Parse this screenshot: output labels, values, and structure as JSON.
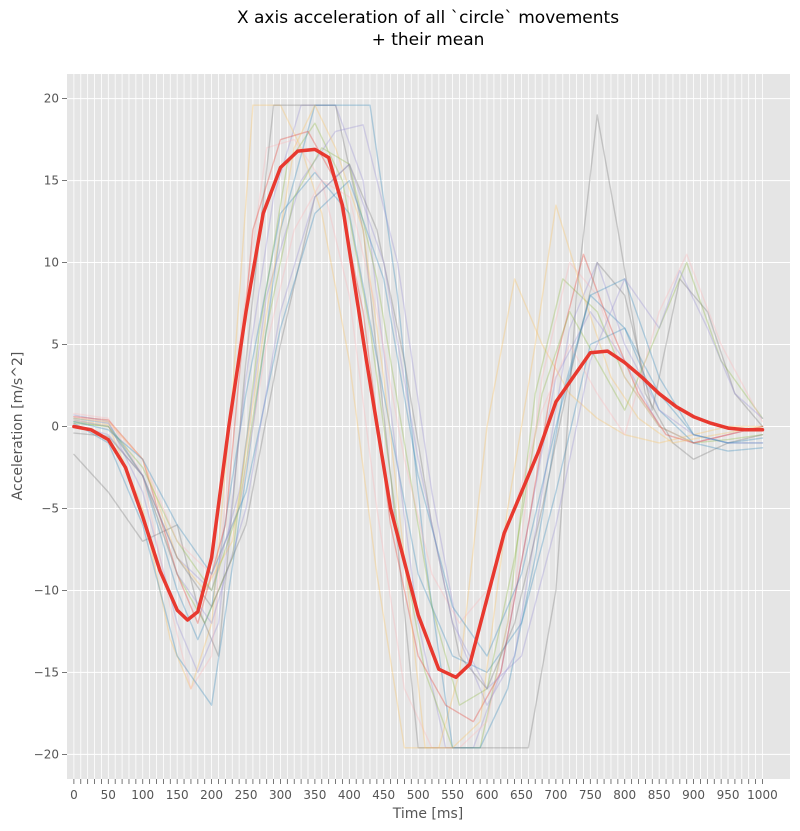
{
  "chart_data": {
    "type": "line",
    "title": "X axis acceleration of all `circle` movements",
    "subtitle": "+ their mean",
    "xlabel": "Time [ms]",
    "ylabel": "Acceleration [m/s^2]",
    "xlim": [
      -10,
      1040
    ],
    "ylim": [
      -21.5,
      21.5
    ],
    "xticks": [
      0,
      50,
      100,
      150,
      200,
      250,
      300,
      350,
      400,
      450,
      500,
      550,
      600,
      650,
      700,
      750,
      800,
      850,
      900,
      950,
      1000
    ],
    "yticks": [
      -20,
      -15,
      -10,
      -5,
      0,
      5,
      10,
      15,
      20
    ],
    "grid": true,
    "background": "#e5e5e5",
    "mean_color": "#e8392f",
    "series": [
      {
        "color": "#e8392f",
        "highlight": true,
        "x": [
          0,
          25,
          50,
          75,
          100,
          125,
          150,
          165,
          180,
          200,
          225,
          250,
          275,
          300,
          325,
          350,
          370,
          390,
          425,
          460,
          500,
          530,
          555,
          575,
          600,
          625,
          650,
          675,
          700,
          725,
          750,
          775,
          800,
          825,
          850,
          875,
          900,
          925,
          950,
          975,
          1000
        ],
        "y": [
          0,
          -0.2,
          -0.8,
          -2.5,
          -5.5,
          -8.8,
          -11.2,
          -11.8,
          -11.3,
          -8,
          0,
          7,
          13,
          15.8,
          16.8,
          16.9,
          16.4,
          13.5,
          4,
          -5,
          -11.5,
          -14.8,
          -15.3,
          -14.5,
          -10.5,
          -6.5,
          -4,
          -1.5,
          1.5,
          3,
          4.5,
          4.6,
          3.9,
          3,
          2,
          1.2,
          0.6,
          0.2,
          -0.1,
          -0.2,
          -0.2
        ]
      },
      {
        "color": "#348abd",
        "x": [
          0,
          50,
          100,
          150,
          180,
          200,
          250,
          300,
          350,
          400,
          450,
          500,
          550,
          600,
          650,
          700,
          750,
          800,
          850,
          900,
          950,
          1000
        ],
        "y": [
          0.5,
          0.2,
          -3,
          -10,
          -13,
          -11,
          2,
          13,
          15.5,
          13,
          2,
          -9,
          -14,
          -15,
          -12,
          -4,
          5,
          6,
          2,
          -0.5,
          -1,
          -1
        ]
      },
      {
        "color": "#988ed5",
        "x": [
          0,
          50,
          100,
          150,
          180,
          210,
          250,
          290,
          330,
          380,
          420,
          460,
          500,
          540,
          580,
          620,
          660,
          700,
          750,
          800,
          850,
          900,
          950,
          1000
        ],
        "y": [
          0.7,
          0.3,
          -4,
          -12,
          -15,
          -12,
          3,
          14,
          19.6,
          19.6,
          15,
          1,
          -12,
          -19.6,
          -19.6,
          -15,
          -6,
          3,
          7,
          4,
          0,
          -1,
          -0.5,
          0
        ]
      },
      {
        "color": "#fbc15e",
        "x": [
          0,
          50,
          100,
          140,
          170,
          200,
          230,
          260,
          300,
          330,
          360,
          400,
          440,
          480,
          500,
          530,
          560,
          600,
          640,
          680,
          720,
          760,
          800,
          850,
          900,
          950,
          1000
        ],
        "y": [
          0.4,
          0.1,
          -5,
          -13,
          -16,
          -12,
          2,
          19.6,
          19.6,
          17,
          13,
          4,
          -9,
          -19.6,
          -19.6,
          -19.6,
          -15,
          0,
          9,
          5,
          2,
          0.5,
          -0.5,
          -1,
          -0.5,
          0,
          0
        ]
      },
      {
        "color": "#8eba42",
        "x": [
          0,
          50,
          100,
          150,
          190,
          230,
          270,
          310,
          350,
          390,
          430,
          470,
          510,
          550,
          590,
          630,
          670,
          710,
          760,
          800,
          850,
          900,
          950,
          1000
        ],
        "y": [
          0.3,
          0,
          -3,
          -9,
          -12,
          -8,
          6,
          16,
          18.5,
          15,
          6,
          -6,
          -15,
          -19.6,
          -19.6,
          -12,
          2,
          9,
          7,
          3,
          0,
          -1,
          -0.8,
          -0.5
        ]
      },
      {
        "color": "#ffb5b8",
        "x": [
          0,
          50,
          100,
          140,
          170,
          200,
          240,
          280,
          320,
          360,
          400,
          440,
          480,
          520,
          560,
          600,
          640,
          680,
          720,
          760,
          800,
          850,
          900,
          950,
          1000
        ],
        "y": [
          0.8,
          0.5,
          -3,
          -11,
          -16,
          -14,
          5,
          17,
          17.5,
          15,
          8,
          -5,
          -16,
          -19.6,
          -19.6,
          -18,
          -10,
          3,
          10,
          8,
          3,
          0,
          -1,
          -0.5,
          0
        ]
      },
      {
        "color": "#777777",
        "x": [
          0,
          50,
          100,
          150,
          180,
          210,
          250,
          290,
          330,
          380,
          420,
          460,
          500,
          540,
          580,
          620,
          660,
          700,
          730,
          760,
          790,
          830,
          870,
          900,
          950,
          1000
        ],
        "y": [
          -1.7,
          -4,
          -7,
          -6,
          -11,
          -14,
          4,
          19.6,
          19.6,
          19.6,
          12,
          -3,
          -19.6,
          -19.6,
          -19.6,
          -19.6,
          -19.6,
          -10,
          8,
          19,
          12,
          2,
          -1,
          -2,
          -1,
          -0.5
        ]
      },
      {
        "color": "#348abd",
        "x": [
          0,
          50,
          100,
          150,
          200,
          250,
          300,
          350,
          400,
          430,
          470,
          510,
          550,
          590,
          630,
          670,
          710,
          750,
          800,
          850,
          900,
          950,
          1000
        ],
        "y": [
          0.2,
          -1,
          -6,
          -14,
          -17,
          -3,
          12,
          19.6,
          19.6,
          19.6,
          8,
          -8,
          -19.6,
          -19.6,
          -16,
          -8,
          2,
          8,
          6,
          1,
          -1,
          -1.5,
          -1.3
        ]
      },
      {
        "color": "#e8392f",
        "x": [
          0,
          50,
          100,
          150,
          180,
          220,
          260,
          300,
          340,
          380,
          420,
          460,
          500,
          540,
          580,
          620,
          660,
          700,
          740,
          780,
          820,
          860,
          900,
          950,
          1000
        ],
        "y": [
          0.6,
          0.4,
          -2,
          -9,
          -12,
          -6,
          12,
          17.5,
          18,
          15,
          7,
          -6,
          -14,
          -17,
          -18,
          -15,
          -6,
          4,
          10.5,
          6,
          2,
          -0.5,
          -1,
          -0.5,
          0
        ]
      },
      {
        "color": "#988ed5",
        "x": [
          0,
          50,
          100,
          150,
          200,
          240,
          280,
          330,
          380,
          420,
          470,
          520,
          560,
          600,
          640,
          680,
          720,
          760,
          800,
          850,
          900,
          950,
          1000
        ],
        "y": [
          0.1,
          -0.5,
          -3,
          -8,
          -10,
          -4,
          8,
          15,
          18,
          18.4,
          10,
          -4,
          -13,
          -17,
          -14,
          -4,
          6,
          10,
          5,
          1,
          -0.5,
          -1,
          -1
        ]
      },
      {
        "color": "#fbc15e",
        "x": [
          0,
          50,
          100,
          150,
          190,
          230,
          280,
          320,
          350,
          380,
          420,
          450,
          480,
          510,
          550,
          590,
          630,
          670,
          700,
          740,
          780,
          820,
          870,
          920,
          960,
          1000
        ],
        "y": [
          0.5,
          0.3,
          -2,
          -8,
          -10,
          -7,
          7,
          17,
          19.6,
          17,
          12,
          3,
          -8,
          -19.6,
          -19.6,
          -18,
          -5,
          5,
          13.5,
          8,
          3,
          0.5,
          -1,
          -0.6,
          -0.3,
          0
        ]
      },
      {
        "color": "#8eba42",
        "x": [
          0,
          50,
          100,
          150,
          200,
          240,
          280,
          320,
          360,
          400,
          440,
          480,
          520,
          560,
          600,
          640,
          680,
          720,
          760,
          800,
          850,
          890,
          940,
          1000
        ],
        "y": [
          0.2,
          0,
          -2.5,
          -7,
          -10,
          -5,
          6,
          14,
          17,
          16,
          9,
          -1,
          -11,
          -17,
          -16,
          -8,
          2,
          7,
          4,
          1,
          6,
          10,
          4,
          0.5
        ]
      },
      {
        "color": "#ffb5b8",
        "x": [
          0,
          50,
          100,
          150,
          200,
          240,
          280,
          320,
          360,
          400,
          440,
          480,
          520,
          560,
          600,
          640,
          680,
          720,
          760,
          800,
          850,
          890,
          940,
          1000
        ],
        "y": [
          0.6,
          0.2,
          -2,
          -7,
          -9,
          -5,
          5,
          12,
          15,
          14,
          7,
          -2,
          -9,
          -12,
          -10,
          -5,
          1,
          5,
          2,
          -0.5,
          7,
          10.5,
          5,
          0.3
        ]
      },
      {
        "color": "#777777",
        "x": [
          0,
          50,
          100,
          150,
          200,
          250,
          300,
          350,
          400,
          440,
          480,
          520,
          560,
          600,
          640,
          680,
          720,
          760,
          800,
          840,
          880,
          920,
          960,
          1000
        ],
        "y": [
          -0.4,
          -0.6,
          -3,
          -8,
          -11,
          -6,
          5,
          14,
          16,
          12,
          4,
          -6,
          -14,
          -16,
          -12,
          -5,
          3,
          10,
          8,
          1,
          9,
          7,
          2,
          0
        ]
      },
      {
        "color": "#348abd",
        "x": [
          0,
          50,
          100,
          150,
          200,
          250,
          300,
          350,
          400,
          450,
          500,
          550,
          600,
          650,
          700,
          750,
          800,
          850,
          900,
          950,
          1000
        ],
        "y": [
          0.3,
          -0.2,
          -2,
          -6,
          -9,
          -4,
          6,
          13,
          15,
          9,
          -3,
          -11,
          -14,
          -9,
          0,
          8,
          9,
          3,
          -0.5,
          -1,
          -0.7
        ]
      },
      {
        "color": "#988ed5",
        "x": [
          0,
          50,
          100,
          150,
          200,
          250,
          300,
          350,
          400,
          450,
          500,
          550,
          600,
          650,
          700,
          750,
          800,
          850,
          880,
          920,
          960,
          1000
        ],
        "y": [
          0.4,
          0,
          -3,
          -9,
          -12,
          -5,
          7,
          14,
          16,
          10,
          -2,
          -12,
          -16,
          -14,
          -6,
          4,
          9,
          6,
          9.5,
          6,
          2,
          0.5
        ]
      }
    ]
  }
}
